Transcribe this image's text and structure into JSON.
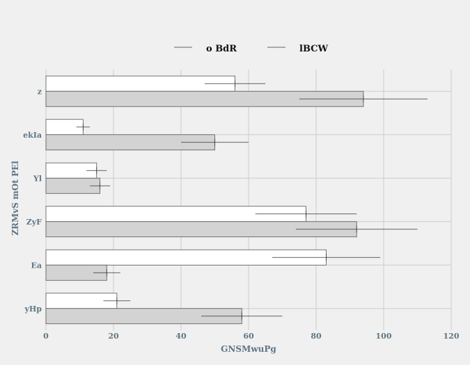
{
  "chart_data": {
    "type": "bar",
    "orientation": "horizontal",
    "categories": [
      "z",
      "ekIa",
      "Yl",
      "ZyF",
      "Ea",
      "yHp"
    ],
    "series": [
      {
        "name": "o BdR",
        "values": [
          56,
          11,
          15,
          77,
          83,
          21
        ],
        "errors": [
          9,
          2,
          3,
          15,
          16,
          4
        ],
        "color": "#ffffff"
      },
      {
        "name": "lBCW",
        "values": [
          94,
          50,
          16,
          92,
          18,
          58
        ],
        "errors": [
          19,
          10,
          3,
          18,
          4,
          12
        ],
        "color": "#d3d3d3"
      }
    ],
    "xlabel": "GNSMwuPg",
    "ylabel": "ZRMvS mOt PEl",
    "xlim": [
      0,
      120
    ],
    "xticks": [
      0,
      20,
      40,
      60,
      80,
      100,
      120
    ],
    "grid": true,
    "legend_position": "top-center",
    "colors": {
      "background": "#f0f0f0",
      "grid": "#cccccc",
      "bar_edge": "#555555",
      "error_bar": "#333333",
      "label": "#5f7583"
    }
  }
}
